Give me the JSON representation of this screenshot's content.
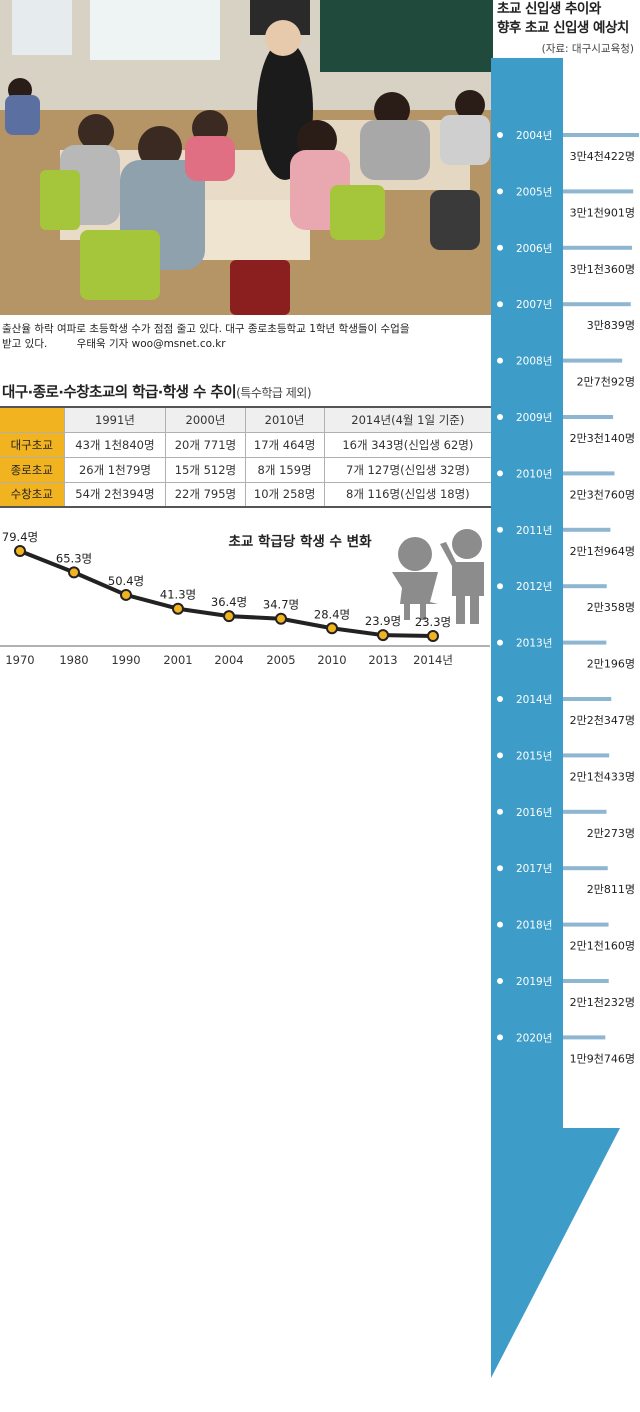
{
  "photo": {
    "caption_line1": "출산율 하락 여파로 초등학생 수가 점점 줄고 있다. 대구 종로초등학교 1학년 학생들이 수업을",
    "caption_line2": "받고 있다.",
    "credit": "우태욱 기자 woo@msnet.co.kr"
  },
  "table": {
    "title": "대구·종로·수창초교의 학급·학생 수 추이",
    "title_note": "(특수학급 제외)",
    "headers": [
      "1991년",
      "2000년",
      "2010년",
      "2014년(4월 1일 기준)"
    ],
    "rows": [
      {
        "school": "대구초교",
        "cells": [
          "43개 1천840명",
          "20개 771명",
          "17개 464명",
          "16개 343명(신입생 62명)"
        ]
      },
      {
        "school": "종로초교",
        "cells": [
          "26개 1천79명",
          "15개 512명",
          "8개 159명",
          "7개 127명(신입생 32명)"
        ]
      },
      {
        "school": "수창초교",
        "cells": [
          "54개 2천394명",
          "22개 795명",
          "10개 258명",
          "8개 116명(신입생 18명)"
        ]
      }
    ]
  },
  "colors": {
    "accent_yellow": "#f2b321",
    "timeline_blue": "#3d9cc8",
    "timeline_blue_dark": "#2a7fb0",
    "line_dark": "#222222",
    "silhouette_gray": "#8c8c8c"
  },
  "chart_data": [
    {
      "type": "line",
      "title": "초교 학급당 학생 수 변화",
      "categories": [
        "1970",
        "1980",
        "1990",
        "2001",
        "2004",
        "2005",
        "2010",
        "2013",
        "2014년"
      ],
      "values": [
        79.4,
        65.3,
        50.4,
        41.3,
        36.4,
        34.7,
        28.4,
        23.9,
        23.3
      ],
      "value_labels": [
        "79.4명",
        "65.3명",
        "50.4명",
        "41.3명",
        "36.4명",
        "34.7명",
        "28.4명",
        "23.9명",
        "23.3명"
      ],
      "ylim": [
        20,
        80
      ]
    },
    {
      "type": "bar",
      "orientation": "horizontal",
      "title": "초교 신입생 추이와\n향후 초교 신입생 예상치",
      "title_line1": "초교 신입생 추이와",
      "title_line2": "향후 초교 신입생 예상치",
      "source": "(자료: 대구시교육청)",
      "categories": [
        "2004년",
        "2005년",
        "2006년",
        "2007년",
        "2008년",
        "2009년",
        "2010년",
        "2011년",
        "2012년",
        "2013년",
        "2014년",
        "2015년",
        "2016년",
        "2017년",
        "2018년",
        "2019년",
        "2020년"
      ],
      "values": [
        34422,
        31901,
        31360,
        30839,
        27092,
        23140,
        23760,
        21964,
        20358,
        20196,
        22347,
        21433,
        20273,
        20811,
        21160,
        21232,
        19746
      ],
      "value_labels": [
        "3만4천422명",
        "3만1천901명",
        "3만1천360명",
        "3만839명",
        "2만7천92명",
        "2만3천140명",
        "2만3천760명",
        "2만1천964명",
        "2만358명",
        "2만196명",
        "2만2천347명",
        "2만1천433명",
        "2만273명",
        "2만811명",
        "2만1천160명",
        "2만1천232명",
        "1만9천746명"
      ]
    }
  ]
}
